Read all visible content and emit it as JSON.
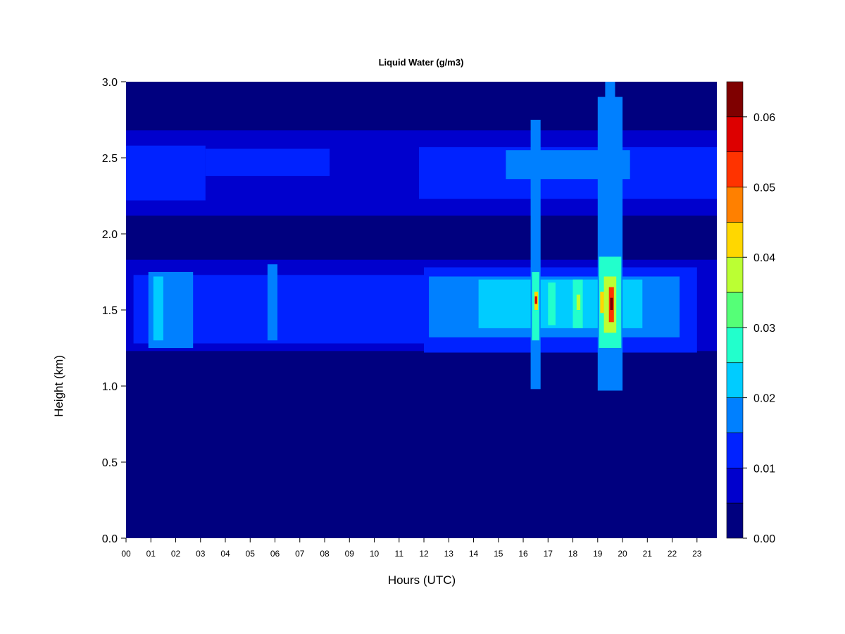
{
  "chart_data": {
    "type": "heatmap",
    "title": "Liquid Water (g/m3)",
    "xlabel": "Hours (UTC)",
    "ylabel": "Height (km)",
    "xlim": [
      0,
      23.8
    ],
    "ylim": [
      0,
      3.0
    ],
    "x_ticks": [
      "00",
      "01",
      "02",
      "03",
      "04",
      "05",
      "06",
      "07",
      "08",
      "09",
      "10",
      "11",
      "12",
      "13",
      "14",
      "15",
      "16",
      "17",
      "18",
      "19",
      "20",
      "21",
      "22",
      "23"
    ],
    "y_ticks": [
      "0.0",
      "0.5",
      "1.0",
      "1.5",
      "2.0",
      "2.5",
      "3.0"
    ],
    "colorbar": {
      "range": [
        0,
        0.065
      ],
      "step": 0.005,
      "ticks": [
        "0.00",
        "0.01",
        "0.02",
        "0.03",
        "0.04",
        "0.05",
        "0.06"
      ],
      "colors": [
        "#00007F",
        "#0000CD",
        "#0022FF",
        "#0080FF",
        "#00CCFF",
        "#22FFCC",
        "#55FF77",
        "#BBFF33",
        "#FFD700",
        "#FF8000",
        "#FF3300",
        "#DD0000",
        "#7F0000"
      ]
    },
    "features": [
      {
        "x": [
          0.0,
          23.8
        ],
        "y": [
          2.12,
          2.68
        ],
        "value": 0.008
      },
      {
        "x": [
          0.0,
          3.2
        ],
        "y": [
          2.22,
          2.58
        ],
        "value": 0.013
      },
      {
        "x": [
          3.2,
          8.2
        ],
        "y": [
          2.38,
          2.56
        ],
        "value": 0.013
      },
      {
        "x": [
          11.8,
          23.8
        ],
        "y": [
          2.23,
          2.57
        ],
        "value": 0.013
      },
      {
        "x": [
          15.3,
          20.3
        ],
        "y": [
          2.36,
          2.55
        ],
        "value": 0.018
      },
      {
        "x": [
          0.0,
          23.8
        ],
        "y": [
          1.23,
          1.83
        ],
        "value": 0.008
      },
      {
        "x": [
          0.3,
          12.0
        ],
        "y": [
          1.28,
          1.73
        ],
        "value": 0.013
      },
      {
        "x": [
          12.0,
          23.0
        ],
        "y": [
          1.22,
          1.78
        ],
        "value": 0.013
      },
      {
        "x": [
          12.2,
          22.3
        ],
        "y": [
          1.32,
          1.72
        ],
        "value": 0.018
      },
      {
        "x": [
          14.2,
          20.8
        ],
        "y": [
          1.38,
          1.7
        ],
        "value": 0.022
      },
      {
        "x": [
          0.9,
          2.7
        ],
        "y": [
          1.25,
          1.75
        ],
        "value": 0.018
      },
      {
        "x": [
          1.1,
          1.5
        ],
        "y": [
          1.3,
          1.72
        ],
        "value": 0.022
      },
      {
        "x": [
          5.7,
          6.1
        ],
        "y": [
          1.3,
          1.8
        ],
        "value": 0.018
      },
      {
        "x": [
          16.3,
          16.7
        ],
        "y": [
          0.98,
          2.75
        ],
        "value": 0.018
      },
      {
        "x": [
          16.35,
          16.65
        ],
        "y": [
          1.3,
          1.75
        ],
        "value": 0.028
      },
      {
        "x": [
          16.45,
          16.6
        ],
        "y": [
          1.5,
          1.62
        ],
        "value": 0.042
      },
      {
        "x": [
          16.47,
          16.56
        ],
        "y": [
          1.54,
          1.59
        ],
        "value": 0.055
      },
      {
        "x": [
          17.0,
          17.3
        ],
        "y": [
          1.4,
          1.68
        ],
        "value": 0.028
      },
      {
        "x": [
          18.0,
          18.4
        ],
        "y": [
          1.38,
          1.7
        ],
        "value": 0.028
      },
      {
        "x": [
          18.15,
          18.3
        ],
        "y": [
          1.5,
          1.6
        ],
        "value": 0.038
      },
      {
        "x": [
          19.0,
          20.0
        ],
        "y": [
          0.97,
          2.9
        ],
        "value": 0.018
      },
      {
        "x": [
          19.3,
          19.7
        ],
        "y": [
          2.5,
          3.0
        ],
        "value": 0.018
      },
      {
        "x": [
          19.05,
          19.95
        ],
        "y": [
          1.25,
          1.85
        ],
        "value": 0.028
      },
      {
        "x": [
          19.25,
          19.75
        ],
        "y": [
          1.35,
          1.72
        ],
        "value": 0.038
      },
      {
        "x": [
          19.45,
          19.65
        ],
        "y": [
          1.42,
          1.65
        ],
        "value": 0.05
      },
      {
        "x": [
          19.5,
          19.62
        ],
        "y": [
          1.5,
          1.58
        ],
        "value": 0.062
      },
      {
        "x": [
          19.1,
          19.25
        ],
        "y": [
          1.48,
          1.62
        ],
        "value": 0.042
      }
    ]
  }
}
